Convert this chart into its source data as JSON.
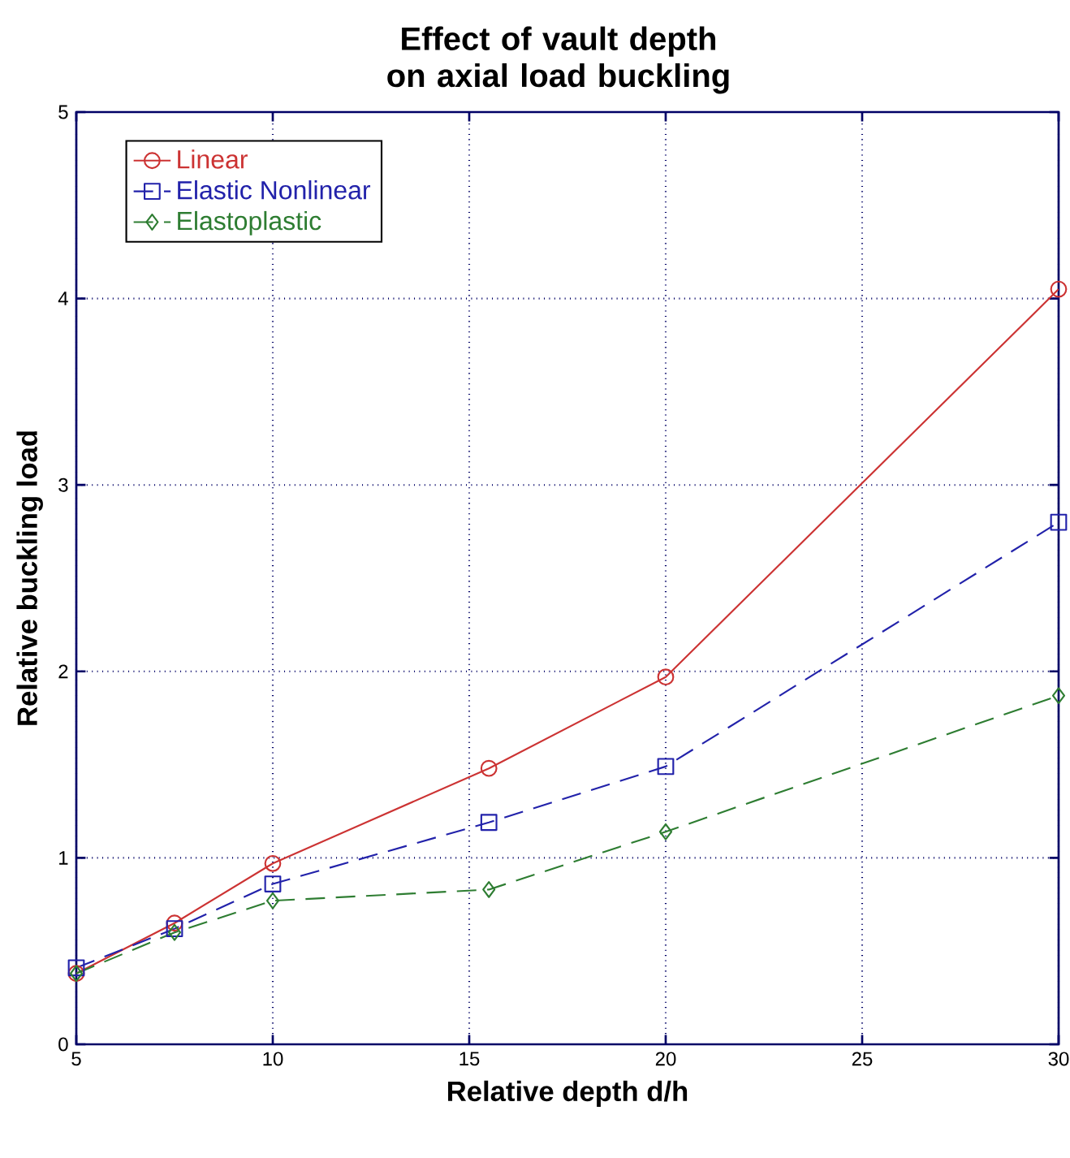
{
  "chart_data": {
    "type": "line",
    "title": "Effect of vault depth\non axial load buckling",
    "xlabel": "Relative depth d/h",
    "ylabel": "Relative buckling load",
    "x": [
      5,
      7.5,
      10,
      15.5,
      20,
      30
    ],
    "series": [
      {
        "name": "Linear",
        "color": "#cc3333",
        "marker": "circle",
        "line_style": "solid",
        "values": [
          0.38,
          0.65,
          0.97,
          1.48,
          1.97,
          4.05
        ]
      },
      {
        "name": "Elastic Nonlinear",
        "color": "#2222aa",
        "marker": "square",
        "line_style": "dashed",
        "values": [
          0.41,
          0.62,
          0.86,
          1.19,
          1.49,
          2.8
        ]
      },
      {
        "name": "Elastoplastic",
        "color": "#2e7d32",
        "marker": "diamond",
        "line_style": "dashed",
        "values": [
          0.38,
          0.6,
          0.77,
          0.83,
          1.14,
          1.87
        ]
      }
    ],
    "xlim": [
      5,
      30
    ],
    "ylim": [
      0,
      5
    ],
    "xticks": [
      5,
      10,
      15,
      20,
      25,
      30
    ],
    "yticks": [
      0,
      1,
      2,
      3,
      4,
      5
    ],
    "grid": true,
    "legend": "top left"
  }
}
